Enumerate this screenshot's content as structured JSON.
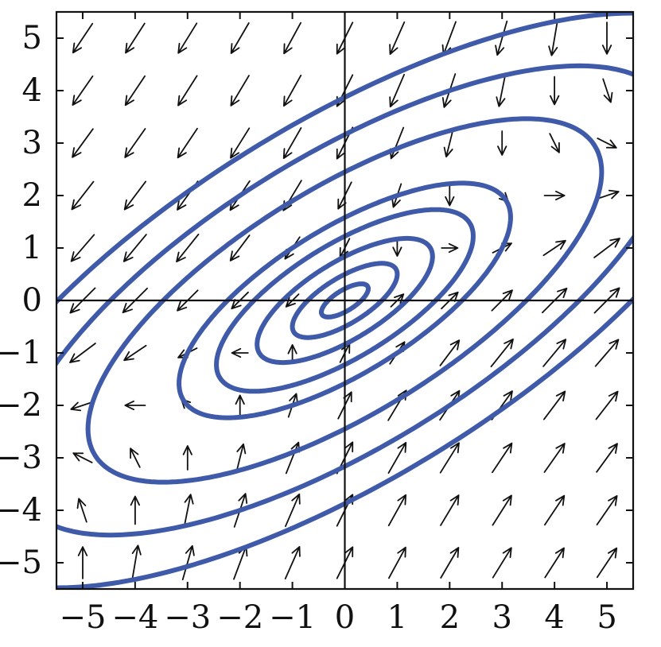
{
  "chart_data": {
    "type": "phase-portrait",
    "title": "",
    "xlabel": "",
    "ylabel": "",
    "xlim": [
      -5.5,
      5.5
    ],
    "ylim": [
      -5.5,
      5.5
    ],
    "x_ticks": [
      "−5",
      "−4",
      "−3",
      "−2",
      "−1",
      "0",
      "1",
      "2",
      "3",
      "4",
      "5"
    ],
    "y_ticks": [
      "−5",
      "−4",
      "−3",
      "−2",
      "−1",
      "0",
      "1",
      "2",
      "3",
      "4",
      "5"
    ],
    "vector_field": {
      "dx": "x - y",
      "dy": "x - 2y"
    },
    "direction_field_grid": [
      -5,
      -4,
      -3,
      -2,
      -1,
      0,
      1,
      2,
      3,
      4,
      5
    ],
    "trajectory_family": "x^2 - 2xy + y^2",
    "trajectory_levels": [
      0.1,
      0.5,
      1.4,
      3,
      5,
      12,
      20,
      30
    ],
    "grid": false,
    "colors": {
      "trajectory": "#3f5aa8",
      "arrow": "#111111",
      "axes": "#111111"
    }
  }
}
